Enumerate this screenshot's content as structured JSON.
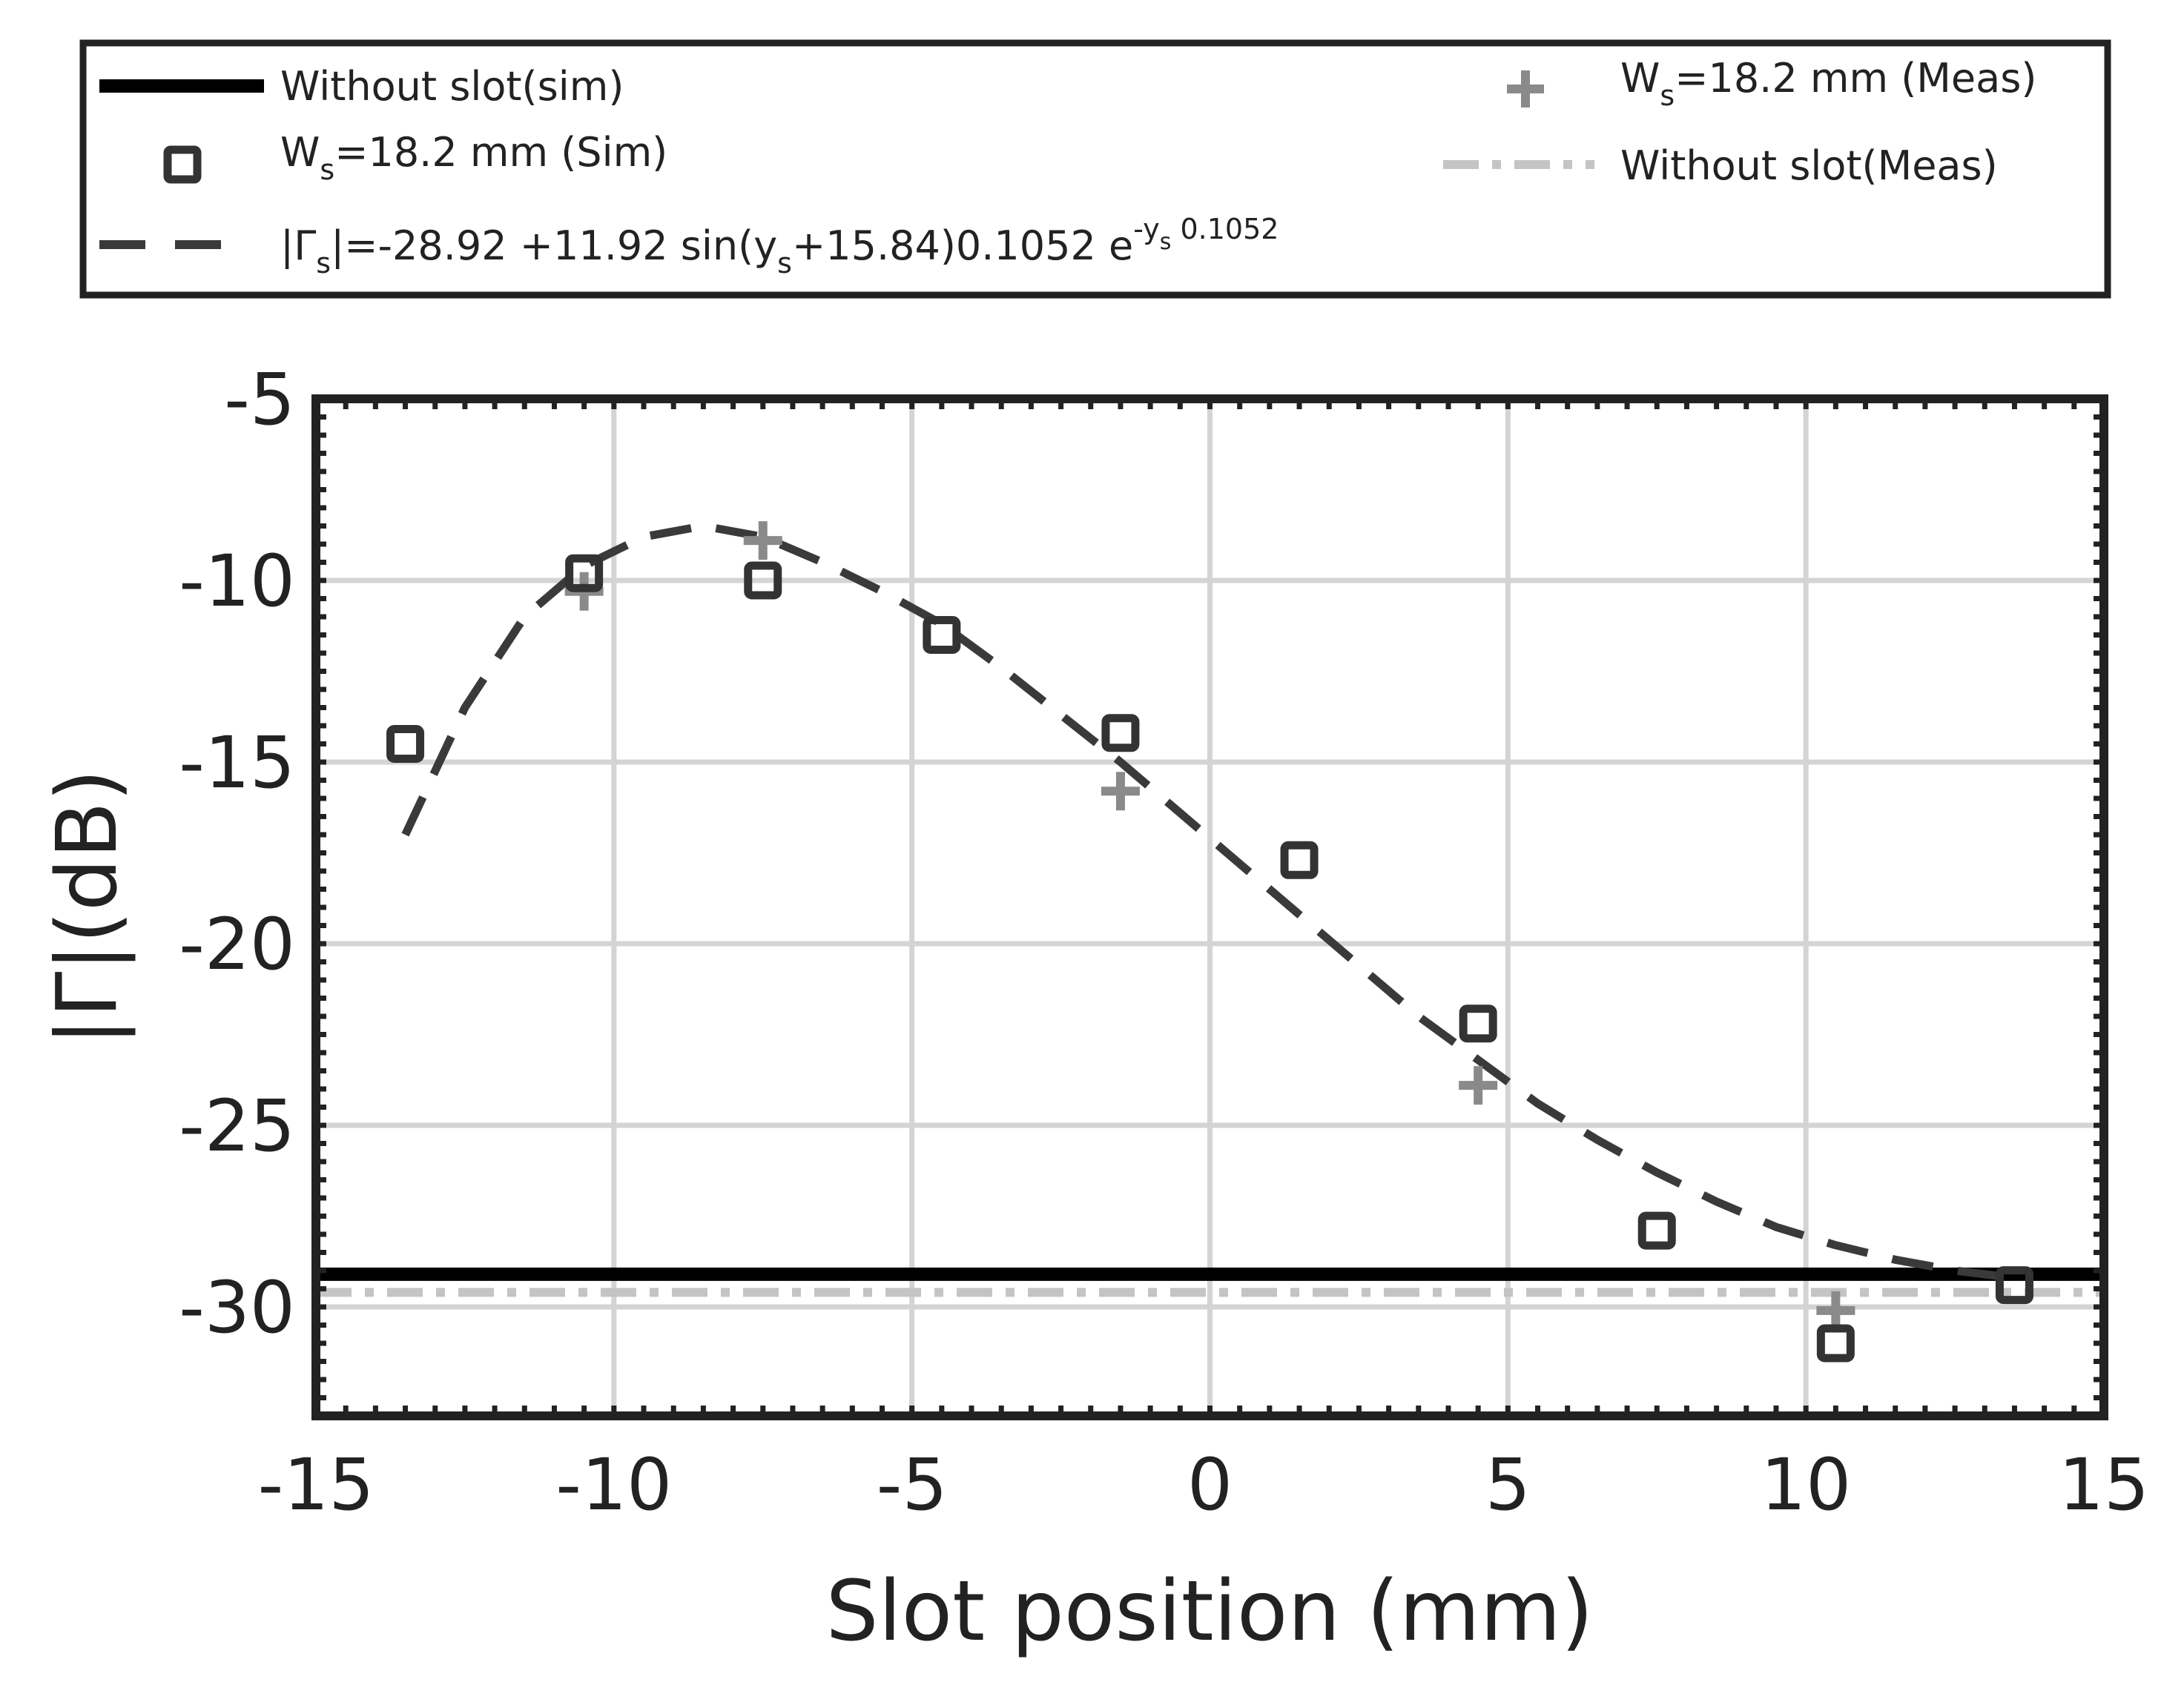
{
  "chart_data": {
    "type": "scatter",
    "title": "",
    "xlabel": "Slot position (mm)",
    "ylabel": "|Γ|(dB)",
    "xlim": [
      -15,
      15
    ],
    "ylim": [
      -33,
      -5
    ],
    "xticks": [
      -15,
      -10,
      -5,
      0,
      5,
      10,
      15
    ],
    "yticks": [
      -5,
      -10,
      -15,
      -20,
      -25,
      -30
    ],
    "xtick_labels": [
      "-15",
      "-10",
      "-5",
      "0",
      "5",
      "10",
      "15"
    ],
    "ytick_labels": [
      "-5",
      "-10",
      "-15",
      "-20",
      "-25",
      "-30"
    ],
    "grid": true,
    "legend_position": "top (outside plot)",
    "series": [
      {
        "name": "Without slot(sim)",
        "style": "solid-line",
        "color": "#000000",
        "x": [
          -15,
          15
        ],
        "y": [
          -29.1,
          -29.1
        ]
      },
      {
        "name": "Ws=18.2 mm (Sim)",
        "style": "square-markers",
        "color": "#333333",
        "x": [
          -13.5,
          -10.5,
          -7.5,
          -4.5,
          -1.5,
          1.5,
          4.5,
          7.5,
          10.5,
          13.5
        ],
        "y": [
          -14.5,
          -9.8,
          -10.0,
          -11.5,
          -14.2,
          -17.7,
          -22.2,
          -27.9,
          -31.0,
          -29.4
        ]
      },
      {
        "name": "|Γs|=-28.92 +11.92 sin(ys+15.84)0.1052 e^-ys 0.1052",
        "style": "dashed-line",
        "color": "#3a3a3a",
        "x": [
          -13.5,
          -12.5,
          -11.5,
          -10.5,
          -9.5,
          -8.5,
          -7.5,
          -6.5,
          -5.5,
          -4.5,
          -3.5,
          -2.5,
          -1.5,
          -0.5,
          0.5,
          1.5,
          2.5,
          3.5,
          4.5,
          5.5,
          6.5,
          7.5,
          8.5,
          9.5,
          10.5,
          11.5,
          12.5,
          13.5
        ],
        "y": [
          -17.0,
          -13.5,
          -11.0,
          -9.6,
          -8.8,
          -8.5,
          -8.8,
          -9.5,
          -10.3,
          -11.2,
          -12.4,
          -13.7,
          -15.0,
          -16.4,
          -17.8,
          -19.2,
          -20.6,
          -22.0,
          -23.2,
          -24.4,
          -25.4,
          -26.3,
          -27.1,
          -27.8,
          -28.3,
          -28.7,
          -29.0,
          -29.2
        ]
      },
      {
        "name": "Ws=18.2 mm (Meas)",
        "style": "plus-markers",
        "color": "#8a8a8a",
        "x": [
          -10.5,
          -7.5,
          -1.5,
          4.5,
          10.5
        ],
        "y": [
          -10.3,
          -8.9,
          -15.8,
          -23.9,
          -30.1
        ]
      },
      {
        "name": "Without slot(Meas)",
        "style": "dash-dot-line",
        "color": "#c4c4c4",
        "x": [
          -15,
          15
        ],
        "y": [
          -29.6,
          -29.6
        ]
      }
    ]
  },
  "legend": {
    "items": [
      {
        "main": "Without slot(sim)"
      },
      {
        "pre": "W",
        "sub": "s",
        "post": "=18.2 mm (Sim)"
      },
      {
        "pre": "|Γ",
        "sub": "s",
        "mid": "|=-28.92 +11.92 sin(y",
        "sub2": "s",
        "mid2": "+15.84)0.1052 e",
        "sup": "-y",
        "supsub": "s",
        "sup2": " 0.1052"
      },
      {
        "pre": "W",
        "sub": "s",
        "post": "=18.2 mm (Meas)"
      },
      {
        "main": "Without slot(Meas)"
      }
    ]
  }
}
